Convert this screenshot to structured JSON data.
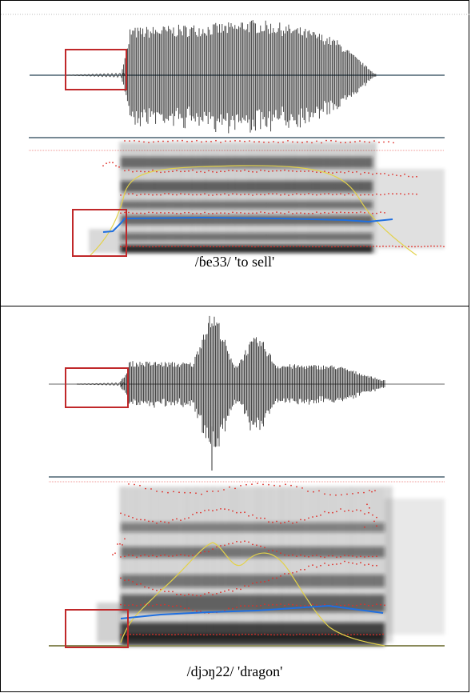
{
  "figure": {
    "top_panel": {
      "caption": "/ɓe33/ 'to sell'"
    },
    "bottom_panel": {
      "caption": "/djɔŋ22/ 'dragon'"
    }
  },
  "colors": {
    "waveform": "#111111",
    "spectrogram": "#222222",
    "formant_dots": "#e0302a",
    "pitch_track": "#1f6fe0",
    "intensity_track": "#e3d24a",
    "highlight_box": "#c0282a",
    "axis_line": "#4a6270"
  }
}
